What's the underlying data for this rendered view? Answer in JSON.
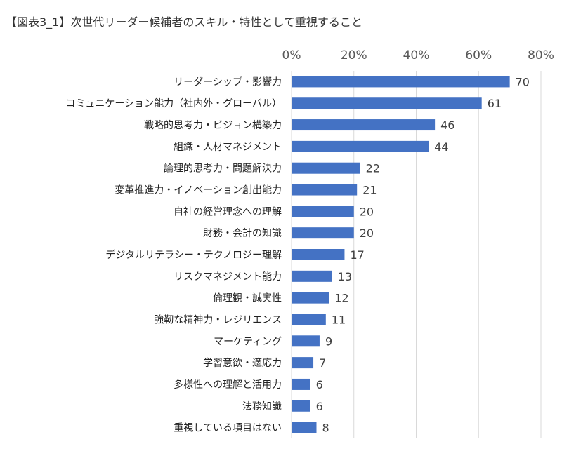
{
  "chart_data": {
    "type": "bar",
    "orientation": "horizontal",
    "title": "【図表3_1】次世代リーダー候補者のスキル・特性として重視すること",
    "categories": [
      "リーダーシップ・影響力",
      "コミュニケーション能力（社内外・グローバル）",
      "戦略的思考力・ビジョン構築力",
      "組織・人材マネジメント",
      "論理的思考力・問題解決力",
      "変革推進力・イノベーション創出能力",
      "自社の経営理念への理解",
      "財務・会計の知識",
      "デジタルリテラシー・テクノロジー理解",
      "リスクマネジメント能力",
      "倫理観・誠実性",
      "強靭な精神力・レジリエンス",
      "マーケティング",
      "学習意欲・適応力",
      "多様性への理解と活用力",
      "法務知識",
      "重視している項目はない"
    ],
    "values": [
      70,
      61,
      46,
      44,
      22,
      21,
      20,
      20,
      17,
      13,
      12,
      11,
      9,
      7,
      6,
      6,
      8
    ],
    "xlim": [
      0,
      80
    ],
    "xticks": [
      "0%",
      "20%",
      "40%",
      "60%",
      "80%"
    ],
    "axis_position": "top",
    "grid": true,
    "bar_color": "#4472C4",
    "grid_color": "#D9D9D9"
  }
}
